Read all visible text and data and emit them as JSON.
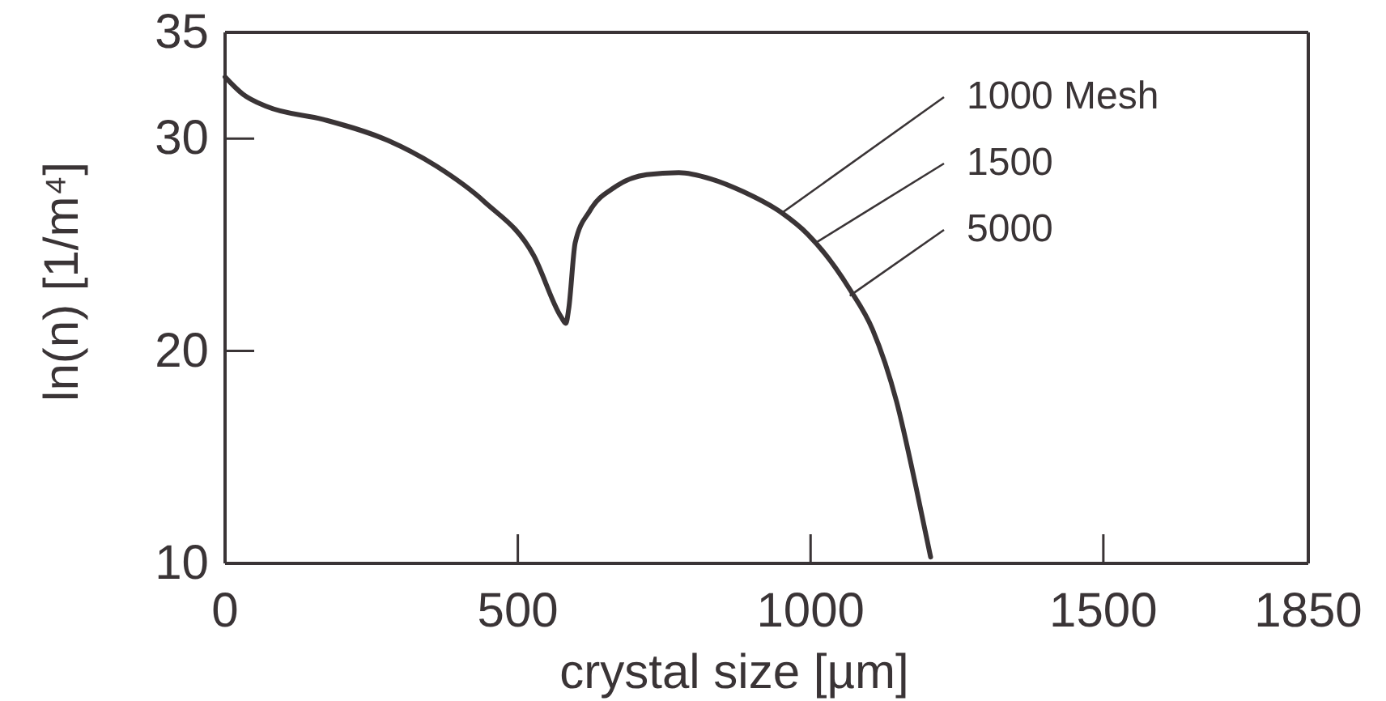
{
  "chart_data": {
    "type": "line",
    "xlabel": "crystal size [µm]",
    "ylabel": "ln(n) [1/m⁴]",
    "x": [
      0,
      30,
      72,
      168,
      279,
      361,
      444,
      527,
      574,
      582,
      587,
      598,
      623,
      665,
      720,
      775,
      830,
      885,
      951,
      995,
      1067,
      1106,
      1147,
      1180,
      1205
    ],
    "series": [
      {
        "color": "#3a3436",
        "values": [
          32.9,
          32.1,
          31.5,
          30.9,
          29.9,
          28.7,
          27.0,
          24.5,
          21.6,
          21.3,
          22.0,
          25.1,
          26.6,
          27.7,
          28.3,
          28.4,
          28.1,
          27.5,
          26.5,
          25.5,
          22.9,
          21.0,
          17.6,
          13.6,
          10.3
        ]
      }
    ],
    "xlim": [
      0,
      1850
    ],
    "xticks": [
      0,
      500,
      1000,
      1500,
      1850
    ],
    "ylim": [
      10,
      35
    ],
    "yticks": [
      10,
      20,
      30,
      35
    ],
    "annotations": [
      {
        "text": "1000 Mesh",
        "x": 951,
        "y": 26.5
      },
      {
        "text": "1500",
        "x": 1009,
        "y": 25.1
      },
      {
        "text": "5000",
        "x": 1067,
        "y": 22.6
      }
    ],
    "grid": false,
    "marker": "none",
    "line_style": "solid"
  }
}
